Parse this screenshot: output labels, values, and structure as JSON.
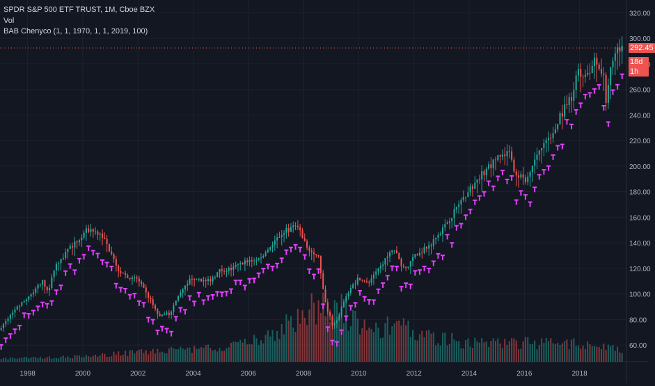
{
  "legend": {
    "symbol": "SPDR S&P 500 ETF TRUST, 1M, Cboe BZX",
    "volume": "Vol",
    "indicator": "BAB Chenyco (1, 1, 1970, 1, 1, 2019, 100)"
  },
  "price_tag": "292.45",
  "countdown_tag": "18d 1h",
  "colors": {
    "background": "#131722",
    "grid": "#1e222d",
    "up": "#26a69a",
    "down": "#ef5350",
    "marker": "#e040fb",
    "text": "#b2b5be"
  },
  "chart_data": {
    "type": "candlestick",
    "title": "SPDR S&P 500 ETF TRUST, 1M, Cboe BZX",
    "x_ticks": [
      "1998",
      "2000",
      "2002",
      "2004",
      "2006",
      "2008",
      "2010",
      "2012",
      "2014",
      "2016",
      "2018"
    ],
    "y_ticks": [
      "60.00",
      "80.00",
      "100.00",
      "120.00",
      "140.00",
      "160.00",
      "180.00",
      "200.00",
      "220.00",
      "240.00",
      "260.00",
      "280.00",
      "300.00",
      "320.00"
    ],
    "xlim": [
      1997.0,
      2019.7
    ],
    "ylim": [
      47,
      330
    ],
    "last_price": 292.45,
    "grid": true,
    "price_anchors": [
      [
        1997.0,
        72
      ],
      [
        1997.6,
        88
      ],
      [
        1998.0,
        96
      ],
      [
        1998.6,
        110
      ],
      [
        1998.8,
        100
      ],
      [
        1999.0,
        120
      ],
      [
        1999.5,
        135
      ],
      [
        1999.9,
        142
      ],
      [
        2000.2,
        150
      ],
      [
        2000.7,
        148
      ],
      [
        2001.0,
        135
      ],
      [
        2001.3,
        120
      ],
      [
        2001.7,
        112
      ],
      [
        2002.0,
        112
      ],
      [
        2002.5,
        95
      ],
      [
        2002.8,
        82
      ],
      [
        2003.2,
        85
      ],
      [
        2003.5,
        98
      ],
      [
        2004.0,
        113
      ],
      [
        2004.6,
        110
      ],
      [
        2005.0,
        118
      ],
      [
        2005.5,
        120
      ],
      [
        2006.0,
        126
      ],
      [
        2006.5,
        128
      ],
      [
        2007.0,
        142
      ],
      [
        2007.4,
        150
      ],
      [
        2007.8,
        153
      ],
      [
        2008.2,
        135
      ],
      [
        2008.6,
        128
      ],
      [
        2008.8,
        95
      ],
      [
        2009.1,
        75
      ],
      [
        2009.3,
        82
      ],
      [
        2009.6,
        100
      ],
      [
        2010.0,
        112
      ],
      [
        2010.4,
        108
      ],
      [
        2010.8,
        120
      ],
      [
        2011.3,
        136
      ],
      [
        2011.7,
        118
      ],
      [
        2012.0,
        128
      ],
      [
        2012.6,
        138
      ],
      [
        2013.0,
        148
      ],
      [
        2013.6,
        168
      ],
      [
        2014.0,
        180
      ],
      [
        2014.6,
        196
      ],
      [
        2015.0,
        205
      ],
      [
        2015.5,
        210
      ],
      [
        2015.7,
        195
      ],
      [
        2016.1,
        190
      ],
      [
        2016.5,
        210
      ],
      [
        2016.9,
        220
      ],
      [
        2017.3,
        238
      ],
      [
        2017.8,
        255
      ],
      [
        2018.0,
        280
      ],
      [
        2018.1,
        265
      ],
      [
        2018.6,
        282
      ],
      [
        2018.9,
        272
      ],
      [
        2019.0,
        250
      ],
      [
        2019.2,
        278
      ],
      [
        2019.4,
        292
      ],
      [
        2019.6,
        292.45
      ]
    ],
    "volume_anchors": [
      [
        1997.0,
        0.05
      ],
      [
        2000.0,
        0.08
      ],
      [
        2002.0,
        0.15
      ],
      [
        2004.0,
        0.2
      ],
      [
        2006.0,
        0.3
      ],
      [
        2007.0,
        0.45
      ],
      [
        2008.0,
        0.8
      ],
      [
        2009.0,
        0.95
      ],
      [
        2010.0,
        0.6
      ],
      [
        2011.0,
        0.55
      ],
      [
        2011.6,
        0.75
      ],
      [
        2012.0,
        0.45
      ],
      [
        2014.0,
        0.3
      ],
      [
        2016.0,
        0.3
      ],
      [
        2018.0,
        0.28
      ],
      [
        2019.6,
        0.2
      ]
    ],
    "series": [
      {
        "name": "SPDR S&P 500 ETF TRUST",
        "kind": "candles"
      },
      {
        "name": "Vol",
        "kind": "volume"
      },
      {
        "name": "BAB Chenyco",
        "kind": "markers"
      }
    ]
  }
}
